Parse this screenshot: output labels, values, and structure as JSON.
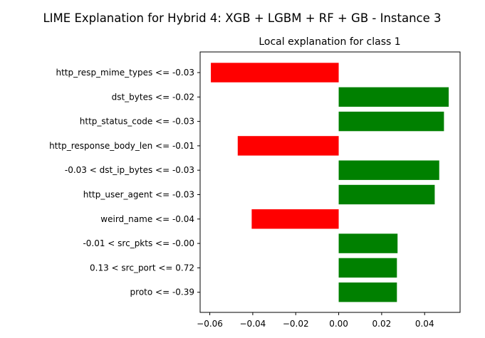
{
  "chart_data": {
    "type": "bar",
    "orientation": "horizontal",
    "suptitle": "LIME Explanation for Hybrid 4: XGB + LGBM + RF + GB - Instance 3",
    "title": "Local explanation for class 1",
    "xlabel": "",
    "ylabel": "",
    "categories": [
      "http_resp_mime_types <= -0.03",
      "dst_bytes <= -0.02",
      "http_status_code <= -0.03",
      "http_response_body_len <= -0.01",
      "-0.03 < dst_ip_bytes <= -0.03",
      "http_user_agent <= -0.03",
      "weird_name <= -0.04",
      "-0.01 < src_pkts <= -0.00",
      "0.13 < src_port <= 0.72",
      "proto <= -0.39"
    ],
    "values": [
      -0.0595,
      0.0512,
      0.049,
      -0.047,
      0.0468,
      0.0447,
      -0.0405,
      0.0274,
      0.0271,
      0.0271
    ],
    "xlim": [
      -0.0645,
      0.0565
    ],
    "xticks": [
      -0.06,
      -0.04,
      -0.02,
      0.0,
      0.02,
      0.04
    ],
    "xtick_labels": [
      "−0.06",
      "−0.04",
      "−0.02",
      "0.00",
      "0.02",
      "0.04"
    ],
    "grid": false,
    "colors": {
      "positive": "#008000",
      "negative": "#ff0000"
    }
  }
}
